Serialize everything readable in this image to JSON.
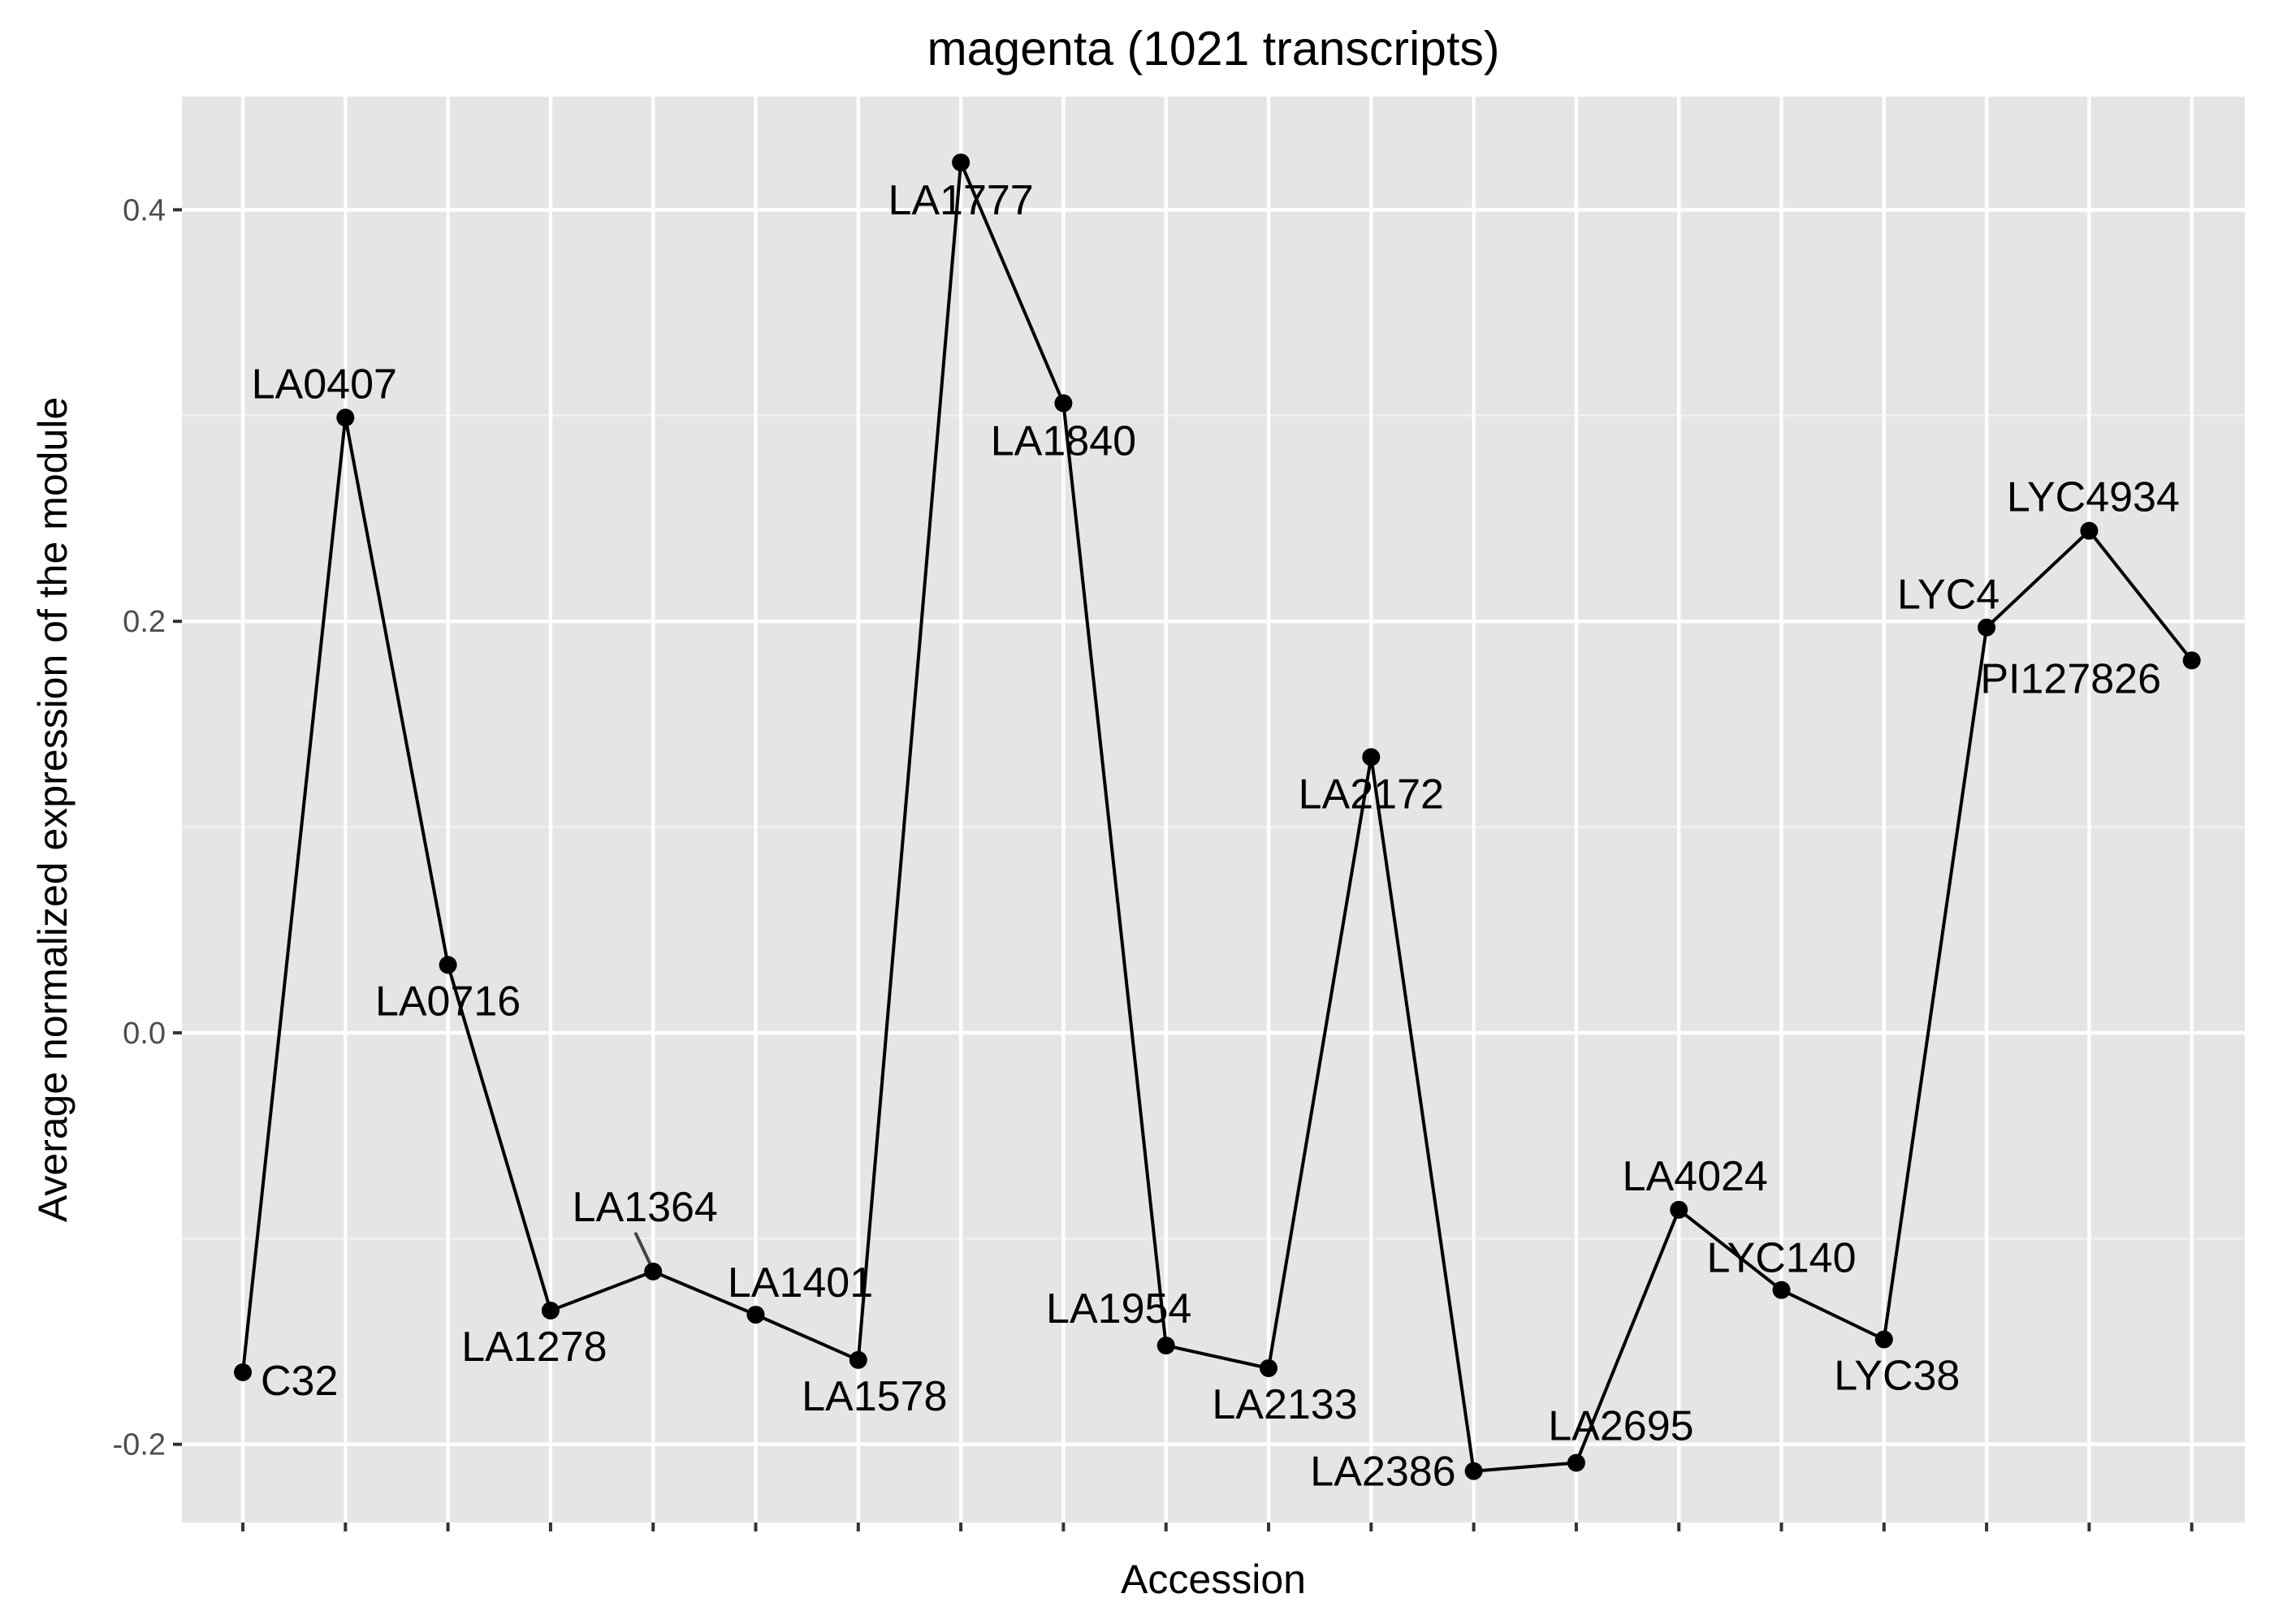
{
  "chart_data": {
    "type": "line",
    "title": "magenta (1021 transcripts)",
    "xlabel": "Accession",
    "ylabel": "Average normalized expression of the module",
    "ylim": [
      -0.238,
      0.455
    ],
    "y_ticks": [
      -0.2,
      0.0,
      0.2,
      0.4
    ],
    "y_tick_labels": [
      "-0.2",
      "0.0",
      "0.2",
      "0.4"
    ],
    "grid": true,
    "series": [
      {
        "points": [
          {
            "label": "C32",
            "value": -0.165
          },
          {
            "label": "LA0407",
            "value": 0.299
          },
          {
            "label": "LA0716",
            "value": 0.033
          },
          {
            "label": "LA1278",
            "value": -0.135
          },
          {
            "label": "LA1364",
            "value": -0.116
          },
          {
            "label": "LA1401",
            "value": -0.137
          },
          {
            "label": "LA1578",
            "value": -0.159
          },
          {
            "label": "LA1777",
            "value": 0.423
          },
          {
            "label": "LA1840",
            "value": 0.306
          },
          {
            "label": "LA1954",
            "value": -0.152
          },
          {
            "label": "LA2133",
            "value": -0.163
          },
          {
            "label": "LA2172",
            "value": 0.134
          },
          {
            "label": "LA2386",
            "value": -0.213
          },
          {
            "label": "LA2695",
            "value": -0.209
          },
          {
            "label": "LA4024",
            "value": -0.086
          },
          {
            "label": "LYC140",
            "value": -0.125
          },
          {
            "label": "LYC38",
            "value": -0.149
          },
          {
            "label": "LYC4",
            "value": 0.197
          },
          {
            "label": "LYC4934",
            "value": 0.244
          },
          {
            "label": "PI127826",
            "value": 0.181
          }
        ]
      }
    ]
  }
}
